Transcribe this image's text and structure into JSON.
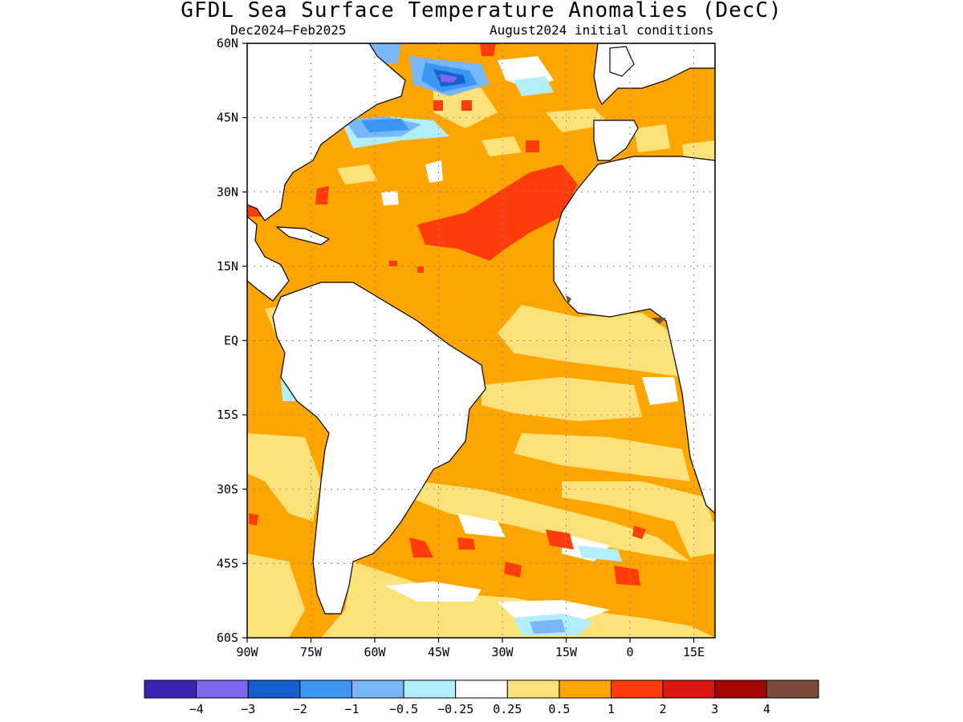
{
  "title": "GFDL Sea Surface Temperature Anomalies (DecC)",
  "subtitle_left": "Dec2024–Feb2025",
  "subtitle_right": "August2024 initial conditions",
  "map": {
    "lon_range": [
      -90,
      20
    ],
    "lat_range": [
      -60,
      60
    ],
    "x_ticks": [
      {
        "value": -90,
        "label": "90W"
      },
      {
        "value": -75,
        "label": "75W"
      },
      {
        "value": -60,
        "label": "60W"
      },
      {
        "value": -45,
        "label": "45W"
      },
      {
        "value": -30,
        "label": "30W"
      },
      {
        "value": -15,
        "label": "15W"
      },
      {
        "value": 0,
        "label": "0"
      },
      {
        "value": 15,
        "label": "15E"
      }
    ],
    "y_ticks": [
      {
        "value": 60,
        "label": "60N"
      },
      {
        "value": 45,
        "label": "45N"
      },
      {
        "value": 30,
        "label": "30N"
      },
      {
        "value": 15,
        "label": "15N"
      },
      {
        "value": 0,
        "label": "EQ"
      },
      {
        "value": -15,
        "label": "15S"
      },
      {
        "value": -30,
        "label": "30S"
      },
      {
        "value": -45,
        "label": "45S"
      },
      {
        "value": -60,
        "label": "60S"
      }
    ],
    "grid": "dotted"
  },
  "colorbar": {
    "colors": [
      "#3a22b4",
      "#7b68ee",
      "#1560d0",
      "#3a96f2",
      "#78b8f8",
      "#b2eefc",
      "#ffffff",
      "#fde27a",
      "#ffa500",
      "#ff3c0a",
      "#dc1610",
      "#a40606",
      "#7a4a3c"
    ],
    "labels": [
      "−4",
      "−3",
      "−2",
      "−1",
      "−0.5",
      "−0.25",
      "0.25",
      "0.5",
      "1",
      "2",
      "3",
      "4"
    ]
  }
}
